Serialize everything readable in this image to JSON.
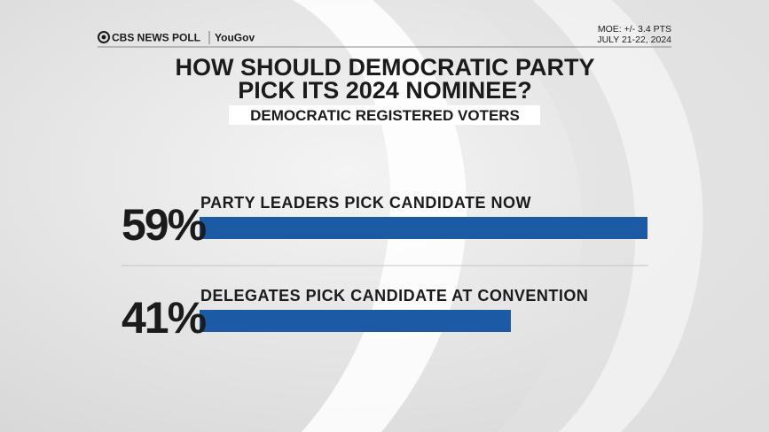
{
  "header": {
    "brand": "CBS NEWS POLL",
    "partner": "YouGov",
    "moe": "MOE: +/- 3.4 PTS",
    "dates": "JULY 21-22, 2024"
  },
  "chart_data": {
    "type": "bar",
    "orientation": "horizontal",
    "title": [
      "HOW SHOULD DEMOCRATIC PARTY",
      "PICK ITS 2024 NOMINEE?"
    ],
    "subtitle": "DEMOCRATIC REGISTERED VOTERS",
    "categories": [
      "PARTY LEADERS PICK CANDIDATE NOW",
      "DELEGATES PICK CANDIDATE AT CONVENTION"
    ],
    "values": [
      59,
      41
    ],
    "value_labels": [
      "59%",
      "41%"
    ],
    "color": "#1c5aa6"
  }
}
